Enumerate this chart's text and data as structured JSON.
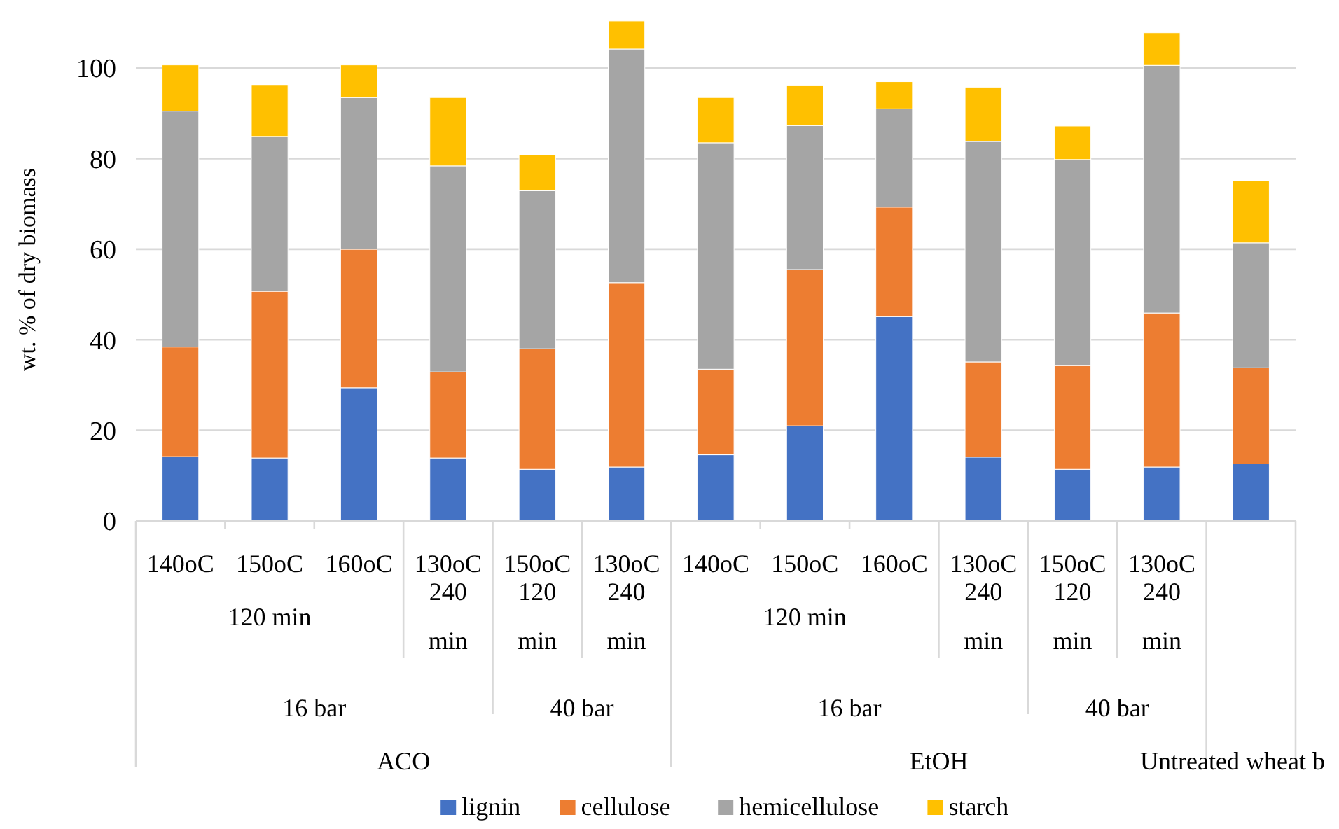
{
  "chart_data": {
    "type": "bar",
    "stacked": true,
    "ylabel": "wt. % of dry biomass",
    "categories": [
      "140oC",
      "150oC",
      "160oC",
      "130oC",
      "150oC",
      "130oC",
      "140oC",
      "150oC",
      "160oC",
      "130oC",
      "150oC",
      "130oC",
      null
    ],
    "series": [
      {
        "name": "lignin",
        "color": "#4472c4",
        "values": [
          14.2,
          13.9,
          29.4,
          13.9,
          11.4,
          11.9,
          14.6,
          21.0,
          45.1,
          14.1,
          11.4,
          11.9,
          12.6
        ]
      },
      {
        "name": "cellulose",
        "color": "#ed7d31",
        "values": [
          24.2,
          36.8,
          30.6,
          19.0,
          26.6,
          40.7,
          18.9,
          34.5,
          24.2,
          21.0,
          22.9,
          34.0,
          21.2
        ]
      },
      {
        "name": "hemicellulose",
        "color": "#a5a5a5",
        "values": [
          52.1,
          34.2,
          33.5,
          45.5,
          34.9,
          51.6,
          50.0,
          31.8,
          21.7,
          48.7,
          45.5,
          54.7,
          27.6
        ]
      },
      {
        "name": "starch",
        "color": "#ffc000",
        "values": [
          10.2,
          11.3,
          7.2,
          15.1,
          7.9,
          6.2,
          10.0,
          8.8,
          6.0,
          12.0,
          7.4,
          7.2,
          13.7
        ]
      }
    ],
    "ylim": [
      0,
      111
    ],
    "yticks": [
      0,
      20,
      40,
      60,
      80,
      100
    ],
    "grid": "y",
    "legend": "bottom",
    "annotations": [
      "120 min",
      "240 min",
      "120 min",
      "240 min",
      "120 min",
      "240 min",
      "120 min",
      "240 min",
      "16 bar",
      "40 bar",
      "16 bar",
      "40 bar",
      "ACO",
      "EtOH",
      "Untreated wheat b"
    ]
  }
}
